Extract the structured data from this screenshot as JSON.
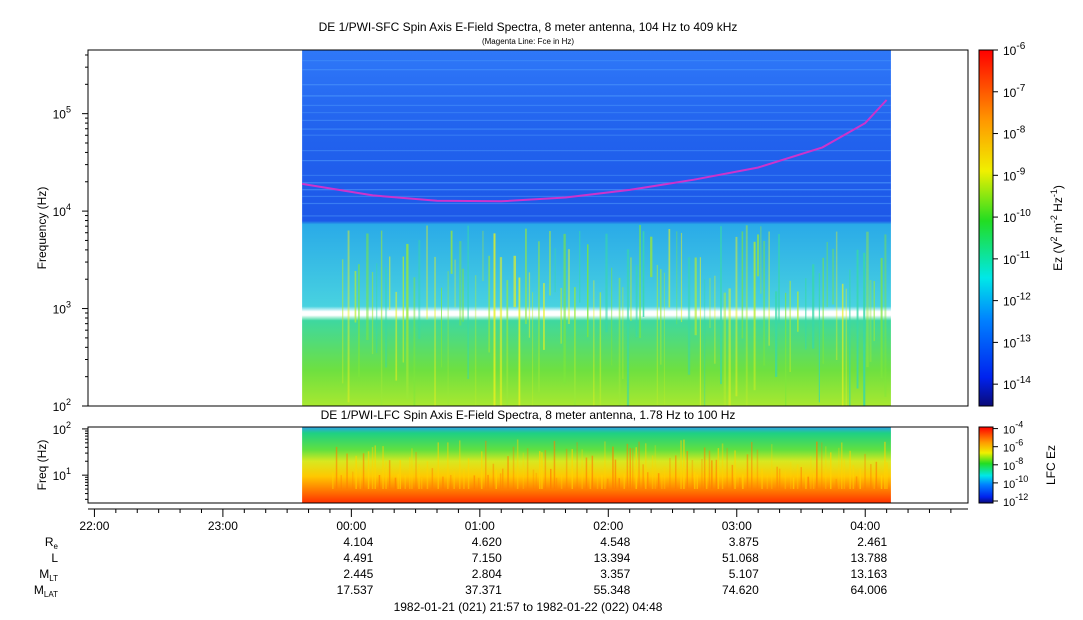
{
  "chart_data": [
    {
      "type": "heatmap",
      "title": "DE 1/PWI-SFC  Spin Axis E-Field Spectra, 8 meter antenna, 104 Hz to 409 kHz",
      "subtitle": "(Magenta Line: Fce in Hz)",
      "ylabel": "Frequency (Hz)",
      "yscale": "log",
      "ylim": [
        100,
        450000
      ],
      "yticks": [
        {
          "value": 100,
          "base": "10",
          "exp": "2"
        },
        {
          "value": 1000,
          "base": "10",
          "exp": "3"
        },
        {
          "value": 10000,
          "base": "10",
          "exp": "4"
        },
        {
          "value": 100000,
          "base": "10",
          "exp": "5"
        }
      ],
      "data_start_utc": "23:37",
      "data_end_utc": "04:12",
      "line": {
        "name": "Fce",
        "color": "#cc33cc",
        "points": [
          {
            "t": "23:37",
            "hz": 19000
          },
          {
            "t": "00:10",
            "hz": 14500
          },
          {
            "t": "00:40",
            "hz": 12800
          },
          {
            "t": "01:10",
            "hz": 12600
          },
          {
            "t": "01:40",
            "hz": 13800
          },
          {
            "t": "02:10",
            "hz": 16500
          },
          {
            "t": "02:40",
            "hz": 21000
          },
          {
            "t": "03:10",
            "hz": 28000
          },
          {
            "t": "03:40",
            "hz": 45000
          },
          {
            "t": "04:00",
            "hz": 80000
          },
          {
            "t": "04:10",
            "hz": 138000
          }
        ]
      },
      "colorbar": {
        "label_main": "Ez (V",
        "label_sup1": "2",
        "label_mid": " m",
        "label_sup2": "-2",
        "label_mid2": " Hz",
        "label_sup3": "-1",
        "label_end": ")",
        "scale": "log",
        "range": [
          3e-15,
          1e-06
        ],
        "ticks": [
          {
            "value": 1e-06,
            "base": "10",
            "exp": "-6"
          },
          {
            "value": 1e-07,
            "base": "10",
            "exp": "-7"
          },
          {
            "value": 1e-08,
            "base": "10",
            "exp": "-8"
          },
          {
            "value": 1e-09,
            "base": "10",
            "exp": "-9"
          },
          {
            "value": 1e-10,
            "base": "10",
            "exp": "-10"
          },
          {
            "value": 1e-11,
            "base": "10",
            "exp": "-11"
          },
          {
            "value": 1e-12,
            "base": "10",
            "exp": "-12"
          },
          {
            "value": 1e-13,
            "base": "10",
            "exp": "-13"
          },
          {
            "value": 1e-14,
            "base": "10",
            "exp": "-14"
          }
        ]
      }
    },
    {
      "type": "heatmap",
      "title": "DE 1/PWI-LFC  Spin Axis E-Field Spectra, 8 meter antenna, 1.78 Hz to 100 Hz",
      "ylabel": "Freq (Hz)",
      "yscale": "log",
      "ylim": [
        2.5,
        110
      ],
      "yticks": [
        {
          "value": 10,
          "base": "10",
          "exp": "1"
        },
        {
          "value": 100,
          "base": "10",
          "exp": "2"
        }
      ],
      "data_start_utc": "23:37",
      "data_end_utc": "04:12",
      "colorbar": {
        "label": "LFC Ez",
        "scale": "log",
        "range": [
          6e-13,
          0.00015
        ],
        "ticks": [
          {
            "value": 0.0001,
            "base": "10",
            "exp": "-4"
          },
          {
            "value": 1e-06,
            "base": "10",
            "exp": "-6"
          },
          {
            "value": 1e-08,
            "base": "10",
            "exp": "-8"
          },
          {
            "value": 1e-10,
            "base": "10",
            "exp": "-10"
          },
          {
            "value": 1e-12,
            "base": "10",
            "exp": "-12"
          }
        ]
      }
    }
  ],
  "time_axis": {
    "range": [
      "21:57",
      "04:48"
    ],
    "ticks": [
      "22:00",
      "23:00",
      "00:00",
      "01:00",
      "02:00",
      "03:00",
      "04:00"
    ]
  },
  "ephemeris": {
    "labels": [
      {
        "base": "R",
        "sub": "e"
      },
      {
        "base": "L",
        "sub": ""
      },
      {
        "base": "M",
        "sub": "LT"
      },
      {
        "base": "M",
        "sub": "LAT"
      }
    ],
    "columns": [
      {
        "time": "00:00",
        "values": [
          "4.104",
          "4.491",
          "2.445",
          "17.537"
        ]
      },
      {
        "time": "01:00",
        "values": [
          "4.620",
          "7.150",
          "2.804",
          "37.371"
        ]
      },
      {
        "time": "02:00",
        "values": [
          "4.548",
          "13.394",
          "3.357",
          "55.348"
        ]
      },
      {
        "time": "03:00",
        "values": [
          "3.875",
          "51.068",
          "5.107",
          "74.620"
        ]
      },
      {
        "time": "04:00",
        "values": [
          "2.461",
          "13.788",
          "13.163",
          "64.006"
        ]
      }
    ]
  },
  "footer": "1982-01-21 (021) 21:57 to 1982-01-22 (022) 04:48"
}
